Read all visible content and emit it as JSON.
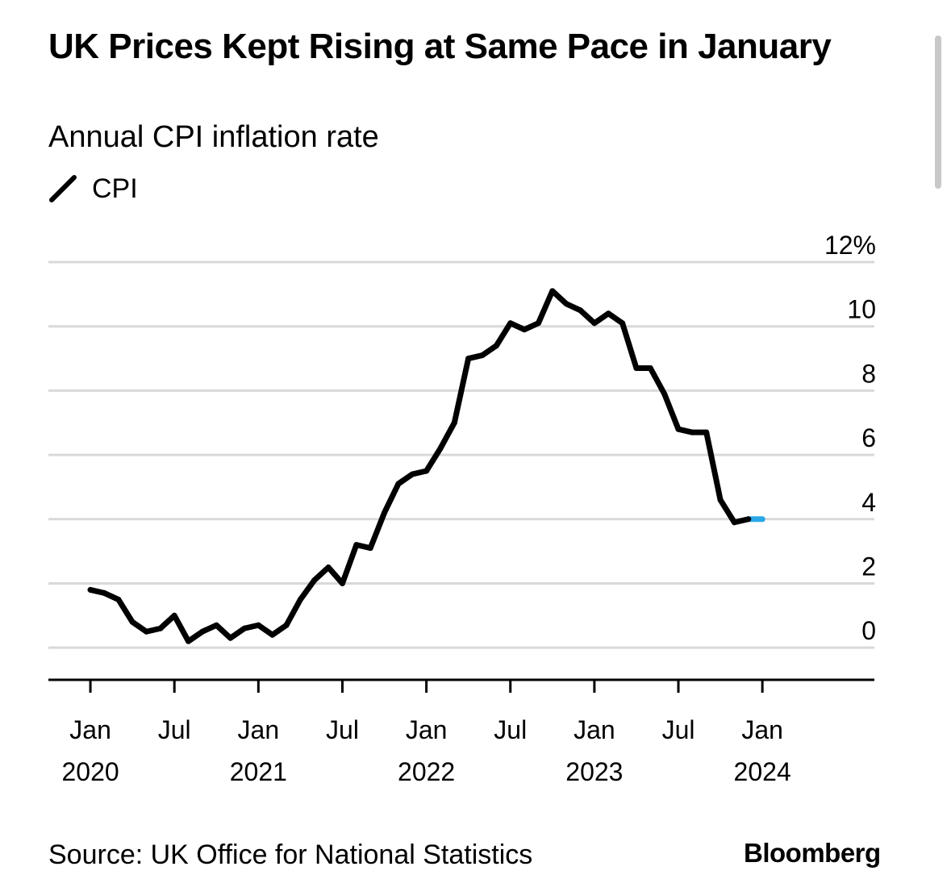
{
  "title": "UK Prices Kept Rising at Same Pace in January",
  "subtitle": "Annual CPI inflation rate",
  "legend": {
    "label": "CPI",
    "color": "#000000"
  },
  "source": "Source: UK Office for National Statistics",
  "brand": "Bloomberg",
  "chart_data": {
    "type": "line",
    "title": "UK Prices Kept Rising at Same Pace in January",
    "subtitle": "Annual CPI inflation rate",
    "ylim": [
      -1,
      12
    ],
    "yticks": [
      {
        "value": 0,
        "label": "0"
      },
      {
        "value": 2,
        "label": "2"
      },
      {
        "value": 4,
        "label": "4"
      },
      {
        "value": 6,
        "label": "6"
      },
      {
        "value": 8,
        "label": "8"
      },
      {
        "value": 10,
        "label": "10"
      },
      {
        "value": 12,
        "label": "12%"
      }
    ],
    "xticks": [
      {
        "date": "2020-01",
        "line1": "Jan",
        "line2": "2020"
      },
      {
        "date": "2020-07",
        "line1": "Jul",
        "line2": ""
      },
      {
        "date": "2021-01",
        "line1": "Jan",
        "line2": "2021"
      },
      {
        "date": "2021-07",
        "line1": "Jul",
        "line2": ""
      },
      {
        "date": "2022-01",
        "line1": "Jan",
        "line2": "2022"
      },
      {
        "date": "2022-07",
        "line1": "Jul",
        "line2": ""
      },
      {
        "date": "2023-01",
        "line1": "Jan",
        "line2": "2023"
      },
      {
        "date": "2023-07",
        "line1": "Jul",
        "line2": ""
      },
      {
        "date": "2024-01",
        "line1": "Jan",
        "line2": "2024"
      }
    ],
    "xlim": [
      "2019-10",
      "2024-09"
    ],
    "grid": true,
    "legend_position": "top-left",
    "highlight_color": "#2aa7e8",
    "series": [
      {
        "name": "CPI",
        "color": "#000000",
        "x": [
          "2020-01",
          "2020-02",
          "2020-03",
          "2020-04",
          "2020-05",
          "2020-06",
          "2020-07",
          "2020-08",
          "2020-09",
          "2020-10",
          "2020-11",
          "2020-12",
          "2021-01",
          "2021-02",
          "2021-03",
          "2021-04",
          "2021-05",
          "2021-06",
          "2021-07",
          "2021-08",
          "2021-09",
          "2021-10",
          "2021-11",
          "2021-12",
          "2022-01",
          "2022-02",
          "2022-03",
          "2022-04",
          "2022-05",
          "2022-06",
          "2022-07",
          "2022-08",
          "2022-09",
          "2022-10",
          "2022-11",
          "2022-12",
          "2023-01",
          "2023-02",
          "2023-03",
          "2023-04",
          "2023-05",
          "2023-06",
          "2023-07",
          "2023-08",
          "2023-09",
          "2023-10",
          "2023-11",
          "2023-12",
          "2024-01"
        ],
        "values": [
          1.8,
          1.7,
          1.5,
          0.8,
          0.5,
          0.6,
          1.0,
          0.2,
          0.5,
          0.7,
          0.3,
          0.6,
          0.7,
          0.4,
          0.7,
          1.5,
          2.1,
          2.5,
          2.0,
          3.2,
          3.1,
          4.2,
          5.1,
          5.4,
          5.5,
          6.2,
          7.0,
          9.0,
          9.1,
          9.4,
          10.1,
          9.9,
          10.1,
          11.1,
          10.7,
          10.5,
          10.1,
          10.4,
          10.1,
          8.7,
          8.7,
          7.9,
          6.8,
          6.7,
          6.7,
          4.6,
          3.9,
          4.0,
          4.0
        ]
      }
    ]
  }
}
